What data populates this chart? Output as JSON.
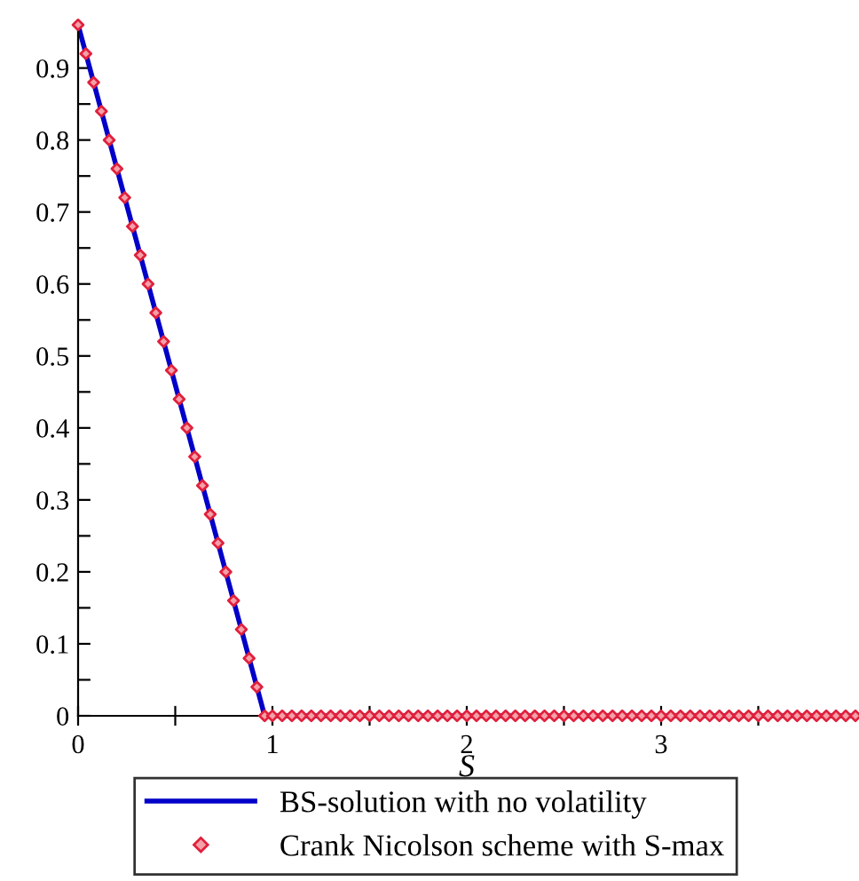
{
  "chart_data": {
    "type": "line",
    "xlabel": "S",
    "xlim": [
      0,
      4
    ],
    "ylim": [
      0,
      0.96
    ],
    "xticks": [
      0,
      {
        "value": 0.5,
        "label": null
      },
      1,
      {
        "value": 1.5,
        "label": null
      },
      2,
      {
        "value": 2.5,
        "label": null
      },
      3,
      {
        "value": 3.5,
        "label": null
      }
    ],
    "yticks": [
      0,
      {
        "value": 0.05,
        "label": null
      },
      0.1,
      {
        "value": 0.15,
        "label": null
      },
      0.2,
      {
        "value": 0.25,
        "label": null
      },
      0.3,
      {
        "value": 0.35,
        "label": null
      },
      0.4,
      {
        "value": 0.45,
        "label": null
      },
      0.5,
      {
        "value": 0.55,
        "label": null
      },
      0.6,
      {
        "value": 0.65,
        "label": null
      },
      0.7,
      {
        "value": 0.75,
        "label": null
      },
      0.8,
      {
        "value": 0.85,
        "label": null
      },
      0.9
    ],
    "legend": "bottom",
    "grid": false,
    "series": [
      {
        "name": "BS-solution with no volatility",
        "color": "#0000c8",
        "line_style": "solid",
        "marker": "none",
        "x": [
          0,
          0.96,
          4
        ],
        "values": [
          0.96,
          0,
          0
        ]
      },
      {
        "name": "Crank Nicolson scheme with S-max",
        "type": "scatter",
        "color": "#e0203c",
        "marker": "diamond",
        "x": [
          0,
          0.04,
          0.08,
          0.12,
          0.16,
          0.2,
          0.24,
          0.28,
          0.32,
          0.36,
          0.4,
          0.44,
          0.48,
          0.52,
          0.56,
          0.6,
          0.64,
          0.68,
          0.72,
          0.76,
          0.8,
          0.84,
          0.88,
          0.92,
          0.96,
          1,
          1.05,
          1.1,
          1.15,
          1.2,
          1.25,
          1.3,
          1.35,
          1.4,
          1.45,
          1.5,
          1.55,
          1.6,
          1.65,
          1.7,
          1.75,
          1.8,
          1.85,
          1.9,
          1.95,
          2,
          2.05,
          2.1,
          2.15,
          2.2,
          2.25,
          2.3,
          2.35,
          2.4,
          2.45,
          2.5,
          2.55,
          2.6,
          2.65,
          2.7,
          2.75,
          2.8,
          2.85,
          2.9,
          2.95,
          3,
          3.05,
          3.1,
          3.15,
          3.2,
          3.25,
          3.3,
          3.35,
          3.4,
          3.45,
          3.5,
          3.55,
          3.6,
          3.65,
          3.7,
          3.75,
          3.8,
          3.85,
          3.9,
          3.95,
          4
        ],
        "values": [
          0.96,
          0.92,
          0.88,
          0.84,
          0.8,
          0.76,
          0.72,
          0.68,
          0.64,
          0.6,
          0.56,
          0.52,
          0.48,
          0.44,
          0.4,
          0.36,
          0.32,
          0.28,
          0.24,
          0.2,
          0.16,
          0.12,
          0.08,
          0.04,
          0,
          0,
          0,
          0,
          0,
          0,
          0,
          0,
          0,
          0,
          0,
          0,
          0,
          0,
          0,
          0,
          0,
          0,
          0,
          0,
          0,
          0,
          0,
          0,
          0,
          0,
          0,
          0,
          0,
          0,
          0,
          0,
          0,
          0,
          0,
          0,
          0,
          0,
          0,
          0,
          0,
          0,
          0,
          0,
          0,
          0,
          0,
          0,
          0,
          0,
          0,
          0,
          0,
          0,
          0,
          0,
          0,
          0,
          0,
          0,
          0,
          0
        ]
      }
    ]
  }
}
